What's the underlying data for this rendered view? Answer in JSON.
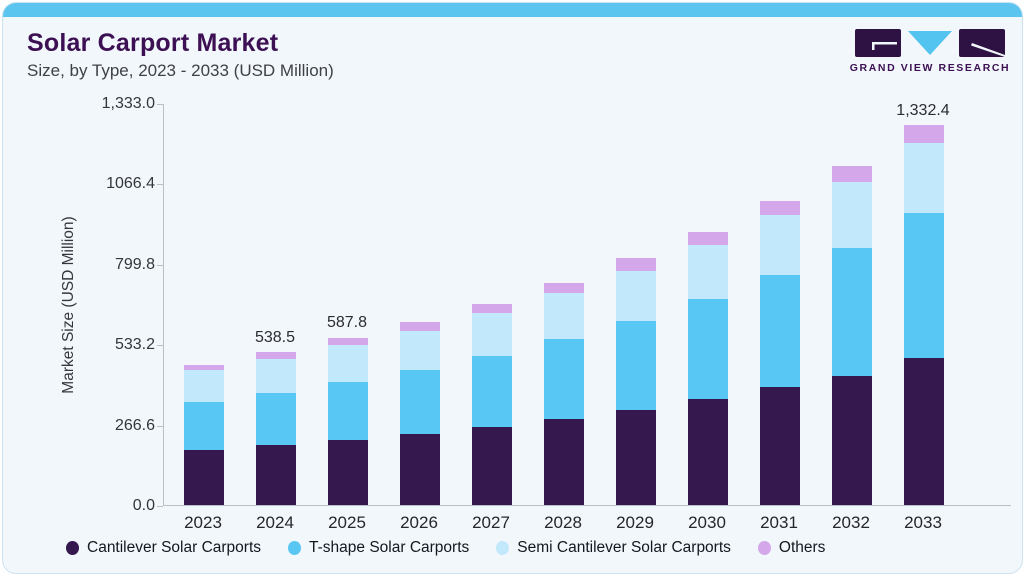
{
  "header": {
    "title": "Solar Carport Market",
    "subtitle": "Size, by Type, 2023 - 2033 (USD Million)"
  },
  "logo": {
    "text": "GRAND VIEW RESEARCH",
    "mark_color": "#2e1244",
    "triangle_color": "#53c3ef"
  },
  "colors": {
    "card_background": "#f1f7fb",
    "top_strip": "#5bc5ef",
    "axis_line": "#b9c0c8",
    "title_text": "#3d1054"
  },
  "chart_data": {
    "type": "bar",
    "stacked": true,
    "title": "Solar Carport Market Size, by Type, 2023 - 2033 (USD Million)",
    "xlabel": "",
    "ylabel": "Market Size (USD Million)",
    "ylim": [
      0,
      1333
    ],
    "grid": false,
    "legend_position": "bottom",
    "categories": [
      "2023",
      "2024",
      "2025",
      "2026",
      "2027",
      "2028",
      "2029",
      "2030",
      "2031",
      "2032",
      "2033"
    ],
    "series": [
      {
        "name": "Cantilever Solar Carports",
        "color": "#34184e",
        "values": [
          194.6,
          210.6,
          227.4,
          250.8,
          273.9,
          302.0,
          335.0,
          373.6,
          414.4,
          453.0,
          515.0
        ]
      },
      {
        "name": "T-shape Solar Carports",
        "color": "#58c7f3",
        "values": [
          168.6,
          184.0,
          204.4,
          222.3,
          248.3,
          278.8,
          311.2,
          347.6,
          393.3,
          448.4,
          508.5
        ]
      },
      {
        "name": "Semi Cantilever Solar Carports",
        "color": "#c2e8fb",
        "values": [
          109.9,
          119.3,
          130.5,
          138.0,
          149.9,
          161.5,
          175.6,
          191.7,
          209.7,
          231.8,
          245.5
        ]
      },
      {
        "name": "Others",
        "color": "#d3a7e9",
        "values": [
          18.6,
          24.6,
          25.5,
          29.5,
          32.7,
          35.1,
          43.5,
          45.7,
          48.1,
          56.2,
          63.4
        ]
      }
    ],
    "totals": [
      491.7,
      538.5,
      587.8,
      640.6,
      704.8,
      777.4,
      865.3,
      958.6,
      1065.5,
      1189.4,
      1332.4
    ],
    "bar_labels": [
      "",
      "538.5",
      "587.8",
      "",
      "",
      "",
      "",
      "",
      "",
      "",
      "1,332.4"
    ],
    "y_ticks": [
      "0.0",
      "266.6",
      "533.2",
      "799.8",
      "1066.4",
      "1,333.0"
    ]
  }
}
